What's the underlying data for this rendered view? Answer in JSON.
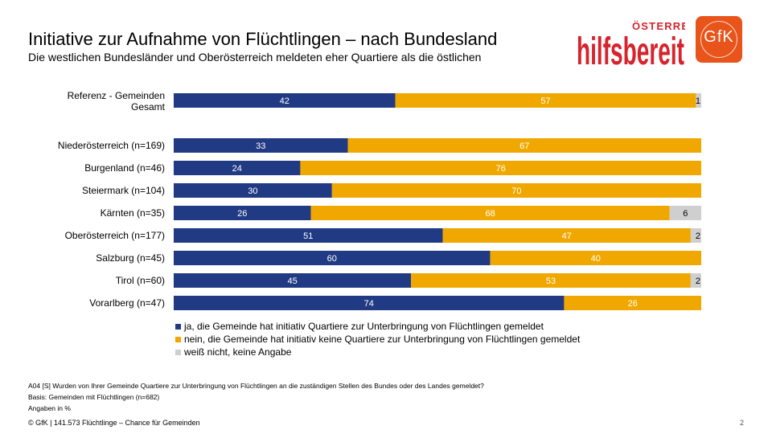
{
  "header": {
    "title": "Initiative zur Aufnahme von Flüchtlingen – nach Bundesland",
    "subtitle": "Die westlichen Bundesländer und Oberösterreich meldeten eher Quartiere als die östlichen"
  },
  "logos": {
    "hilfsbereit_main": "hilfsbereit",
    "hilfsbereit_small": "ÖSTERREICH",
    "gfk": "GfK"
  },
  "colors": {
    "ja": "#213a84",
    "nein": "#f0a800",
    "weiss_nicht": "#cfcfcf",
    "brand_red": "#d6242d",
    "brand_orange": "#e8541a"
  },
  "chart_data": {
    "type": "bar",
    "orientation": "horizontal-stacked",
    "categories": [
      "Referenz - Gemeinden Gesamt",
      "Niederösterreich (n=169)",
      "Burgenland (n=46)",
      "Steiermark (n=104)",
      "Kärnten (n=35)",
      "Oberösterreich (n=177)",
      "Salzburg (n=45)",
      "Tirol (n=60)",
      "Vorarlberg (n=47)"
    ],
    "series": [
      {
        "name": "ja, die Gemeinde hat initiativ Quartiere zur Unterbringung von Flüchtlingen gemeldet",
        "values": [
          42,
          33,
          24,
          30,
          26,
          51,
          60,
          45,
          74
        ]
      },
      {
        "name": "nein, die Gemeinde hat initiativ keine Quartiere zur Unterbringung von Flüchtlingen gemeldet",
        "values": [
          57,
          67,
          76,
          70,
          68,
          47,
          40,
          53,
          26
        ]
      },
      {
        "name": "weiß nicht, keine Angabe",
        "values": [
          1,
          0,
          0,
          0,
          6,
          2,
          0,
          2,
          0
        ]
      }
    ],
    "xlim": [
      0,
      100
    ],
    "legend_position": "bottom-left"
  },
  "footnotes": {
    "question": "A04 [S] Wurden von Ihrer Gemeinde Quartiere zur Unterbringung von Flüchtlingen an die zuständigen Stellen des Bundes oder des Landes gemeldet?",
    "basis": "Basis: Gemeinden mit Flüchtlingen (n=682)",
    "unit": "Angaben in %"
  },
  "footer": {
    "text": "© GfK | 141.573 Flüchtlinge – Chance für Gemeinden",
    "page": "2"
  }
}
